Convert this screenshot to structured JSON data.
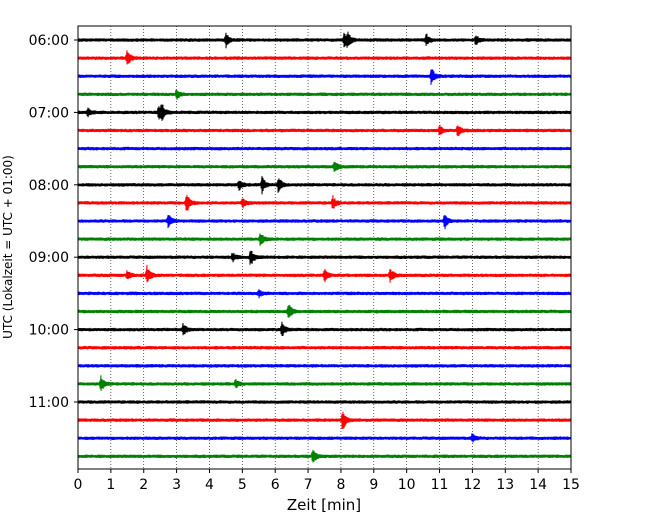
{
  "chart_data": {
    "type": "line",
    "subtype": "helicorder seismogram",
    "xlabel": "Zeit  [min]",
    "ylabel": "UTC (Lokalzeit = UTC + 01:00)",
    "xlim": [
      0,
      15
    ],
    "xticks": [
      0,
      1,
      2,
      3,
      4,
      5,
      6,
      7,
      8,
      9,
      10,
      11,
      12,
      13,
      14,
      15
    ],
    "vertical_grid": "dotted at each minute",
    "trace_interval_minutes": 15,
    "first_trace_utc": "06:00",
    "y_tick_labels": [
      "06:00",
      "07:00",
      "08:00",
      "09:00",
      "10:00",
      "11:00"
    ],
    "color_cycle": [
      "#000000",
      "#ff0000",
      "#0000ff",
      "#008000"
    ],
    "traces": [
      {
        "start": "06:00",
        "color": "#000000",
        "events": [
          [
            4.5,
            1.0
          ],
          [
            8.1,
            1.0
          ],
          [
            8.2,
            1.0
          ],
          [
            10.6,
            0.9
          ],
          [
            12.1,
            0.8
          ]
        ]
      },
      {
        "start": "06:15",
        "color": "#ff0000",
        "events": [
          [
            1.5,
            1.2
          ]
        ]
      },
      {
        "start": "06:30",
        "color": "#0000ff",
        "events": [
          [
            10.75,
            1.3
          ]
        ]
      },
      {
        "start": "06:45",
        "color": "#008000",
        "events": [
          [
            3.0,
            0.7
          ]
        ]
      },
      {
        "start": "07:00",
        "color": "#000000",
        "events": [
          [
            2.45,
            1.2
          ],
          [
            2.55,
            1.1
          ],
          [
            0.3,
            0.6
          ]
        ]
      },
      {
        "start": "07:15",
        "color": "#ff0000",
        "events": [
          [
            11.0,
            0.8
          ],
          [
            11.55,
            0.9
          ]
        ]
      },
      {
        "start": "07:30",
        "color": "#0000ff",
        "events": []
      },
      {
        "start": "07:45",
        "color": "#008000",
        "events": [
          [
            7.8,
            0.8
          ]
        ]
      },
      {
        "start": "08:00",
        "color": "#000000",
        "events": [
          [
            5.6,
            1.2
          ],
          [
            6.1,
            1.3
          ],
          [
            4.9,
            0.7
          ]
        ]
      },
      {
        "start": "08:15",
        "color": "#ff0000",
        "events": [
          [
            3.3,
            1.6
          ],
          [
            7.75,
            1.0
          ],
          [
            5.0,
            0.7
          ]
        ]
      },
      {
        "start": "08:30",
        "color": "#0000ff",
        "events": [
          [
            2.75,
            1.1
          ],
          [
            11.15,
            1.2
          ]
        ]
      },
      {
        "start": "08:45",
        "color": "#008000",
        "events": [
          [
            5.55,
            1.0
          ]
        ]
      },
      {
        "start": "09:00",
        "color": "#000000",
        "events": [
          [
            5.25,
            1.3
          ],
          [
            4.7,
            0.7
          ]
        ]
      },
      {
        "start": "09:15",
        "color": "#ff0000",
        "events": [
          [
            2.1,
            1.3
          ],
          [
            7.5,
            0.9
          ],
          [
            9.5,
            1.1
          ],
          [
            1.5,
            0.7
          ]
        ]
      },
      {
        "start": "09:30",
        "color": "#0000ff",
        "events": [
          [
            5.5,
            0.5
          ]
        ]
      },
      {
        "start": "09:45",
        "color": "#008000",
        "events": [
          [
            6.4,
            1.3
          ]
        ]
      },
      {
        "start": "10:00",
        "color": "#000000",
        "events": [
          [
            3.2,
            0.9
          ],
          [
            6.2,
            1.1
          ]
        ]
      },
      {
        "start": "10:15",
        "color": "#ff0000",
        "events": []
      },
      {
        "start": "10:30",
        "color": "#0000ff",
        "events": []
      },
      {
        "start": "10:45",
        "color": "#008000",
        "events": [
          [
            0.7,
            1.1
          ],
          [
            4.8,
            0.6
          ]
        ]
      },
      {
        "start": "11:00",
        "color": "#000000",
        "events": []
      },
      {
        "start": "11:15",
        "color": "#ff0000",
        "events": [
          [
            8.05,
            1.6
          ]
        ]
      },
      {
        "start": "11:30",
        "color": "#0000ff",
        "events": [
          [
            12.0,
            0.6
          ]
        ]
      },
      {
        "start": "11:45",
        "color": "#008000",
        "events": [
          [
            7.15,
            1.1
          ]
        ]
      }
    ]
  }
}
